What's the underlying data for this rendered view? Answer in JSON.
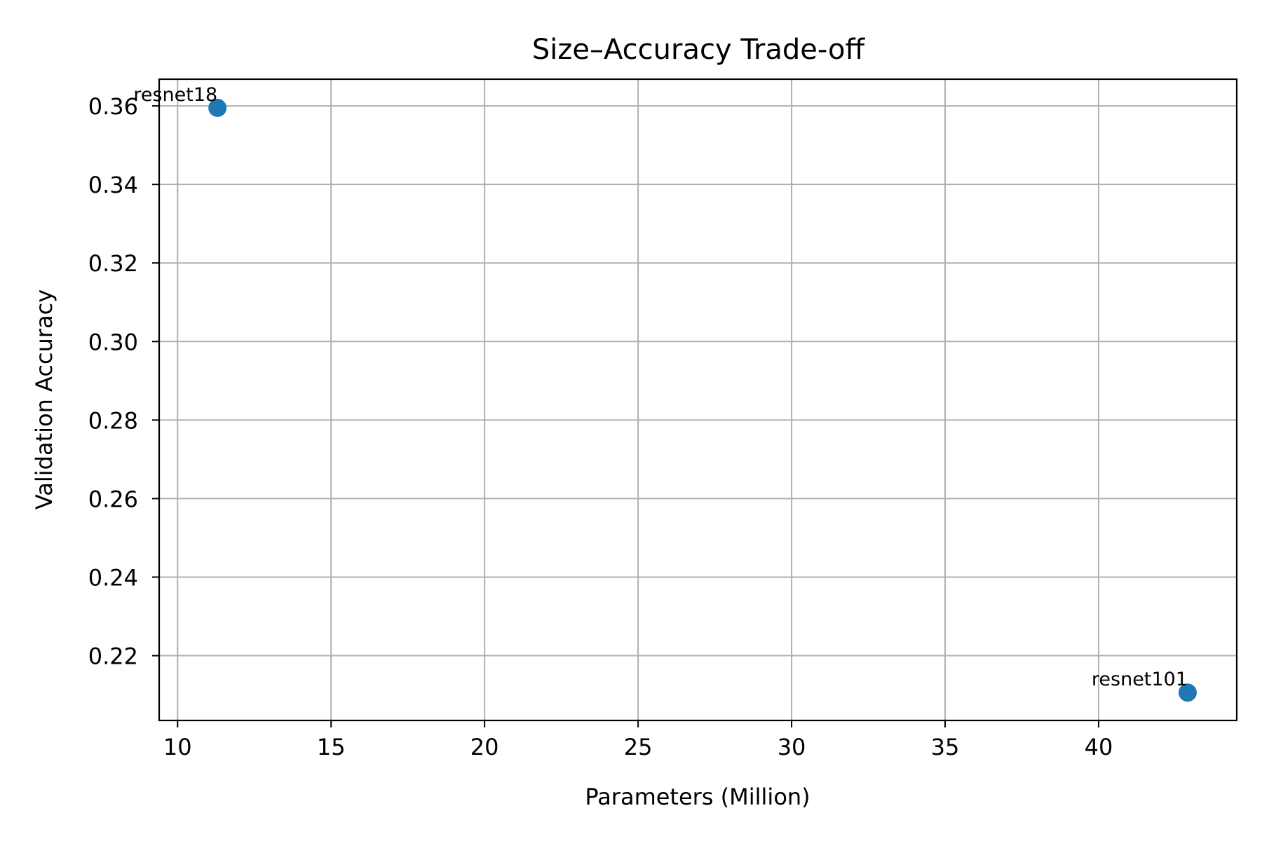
{
  "chart_data": {
    "type": "scatter",
    "title": "Size–Accuracy Trade-off",
    "xlabel": "Parameters (Million)",
    "ylabel": "Validation Accuracy",
    "xlim": [
      9.4,
      44.5
    ],
    "ylim": [
      0.2035,
      0.3668
    ],
    "xticks": [
      10,
      15,
      20,
      25,
      30,
      35,
      40
    ],
    "yticks": [
      0.22,
      0.24,
      0.26,
      0.28,
      0.3,
      0.32,
      0.34,
      0.36
    ],
    "grid": true,
    "points": [
      {
        "label": "resnet18",
        "x": 11.3,
        "y": 0.3595
      },
      {
        "label": "resnet101",
        "x": 42.9,
        "y": 0.2106
      }
    ],
    "colors": {
      "marker": "#1f77b4",
      "grid": "#b0b0b0",
      "axis": "#000000"
    }
  }
}
